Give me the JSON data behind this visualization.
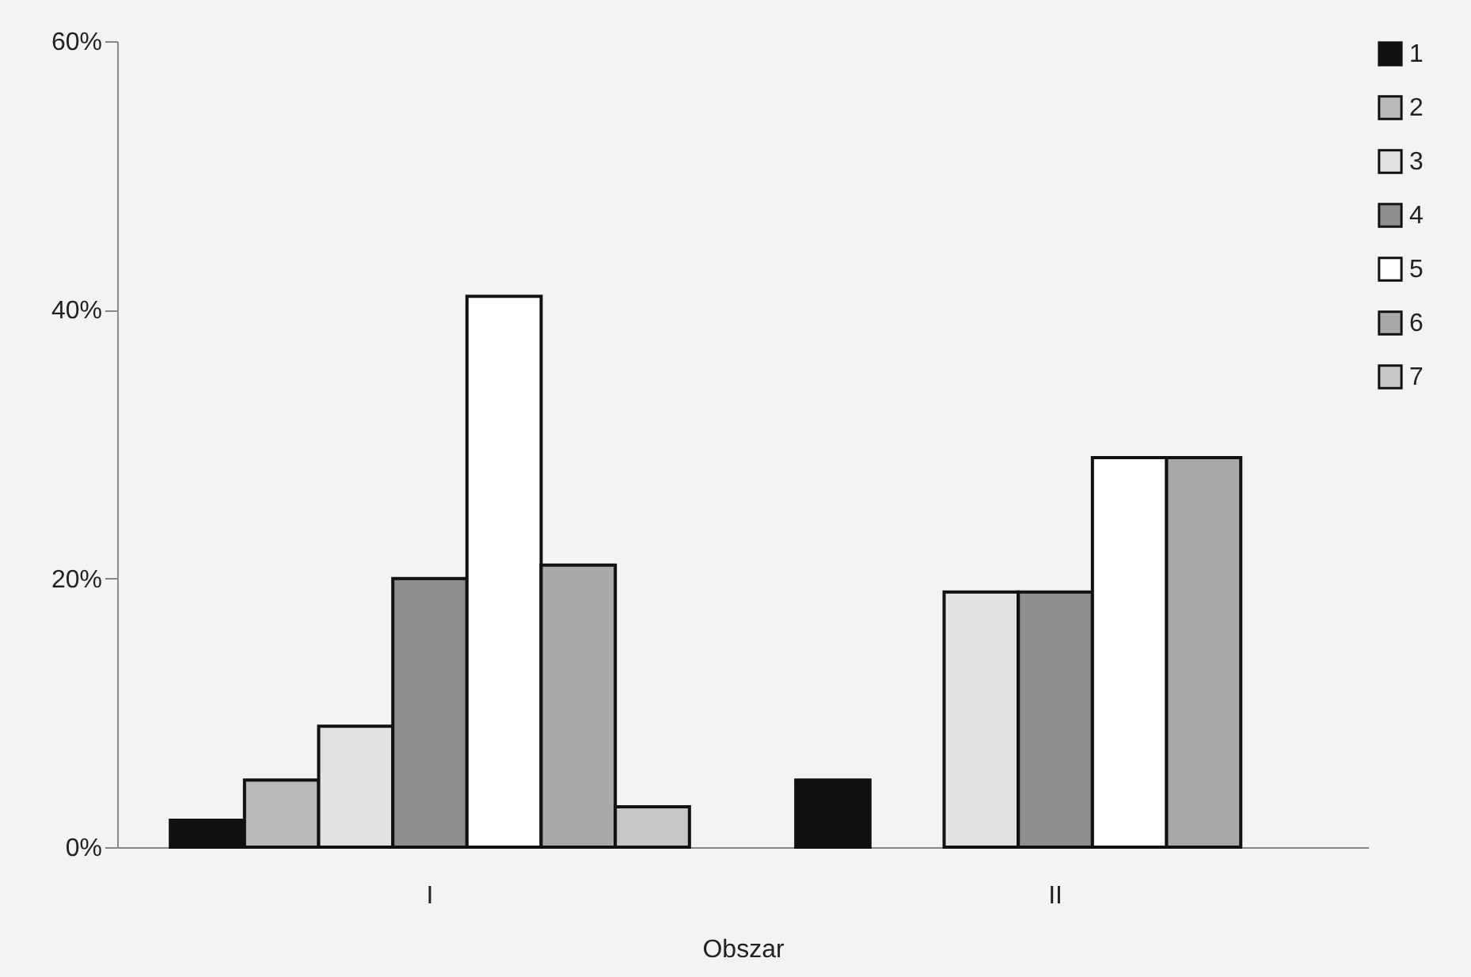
{
  "chart_data": {
    "type": "bar",
    "xlabel": "Obszar",
    "categories": [
      "I",
      "II"
    ],
    "series": [
      {
        "name": "1",
        "color": "#111111",
        "values": [
          2,
          5
        ]
      },
      {
        "name": "2",
        "color": "#b9b9b9",
        "values": [
          5,
          null
        ]
      },
      {
        "name": "3",
        "color": "#e2e2e2",
        "values": [
          9,
          19
        ]
      },
      {
        "name": "4",
        "color": "#8f8f8f",
        "values": [
          20,
          19
        ]
      },
      {
        "name": "5",
        "color": "#ffffff",
        "values": [
          41,
          29
        ]
      },
      {
        "name": "6",
        "color": "#a9a9a9",
        "values": [
          21,
          29
        ]
      },
      {
        "name": "7",
        "color": "#c6c6c6",
        "values": [
          3,
          null
        ]
      }
    ],
    "ylim": [
      0,
      60
    ],
    "yticks": [
      {
        "value": 0,
        "label": "0%"
      },
      {
        "value": 20,
        "label": "20%"
      },
      {
        "value": 40,
        "label": "40%"
      },
      {
        "value": 60,
        "label": "60%"
      }
    ],
    "legend": "top right"
  }
}
